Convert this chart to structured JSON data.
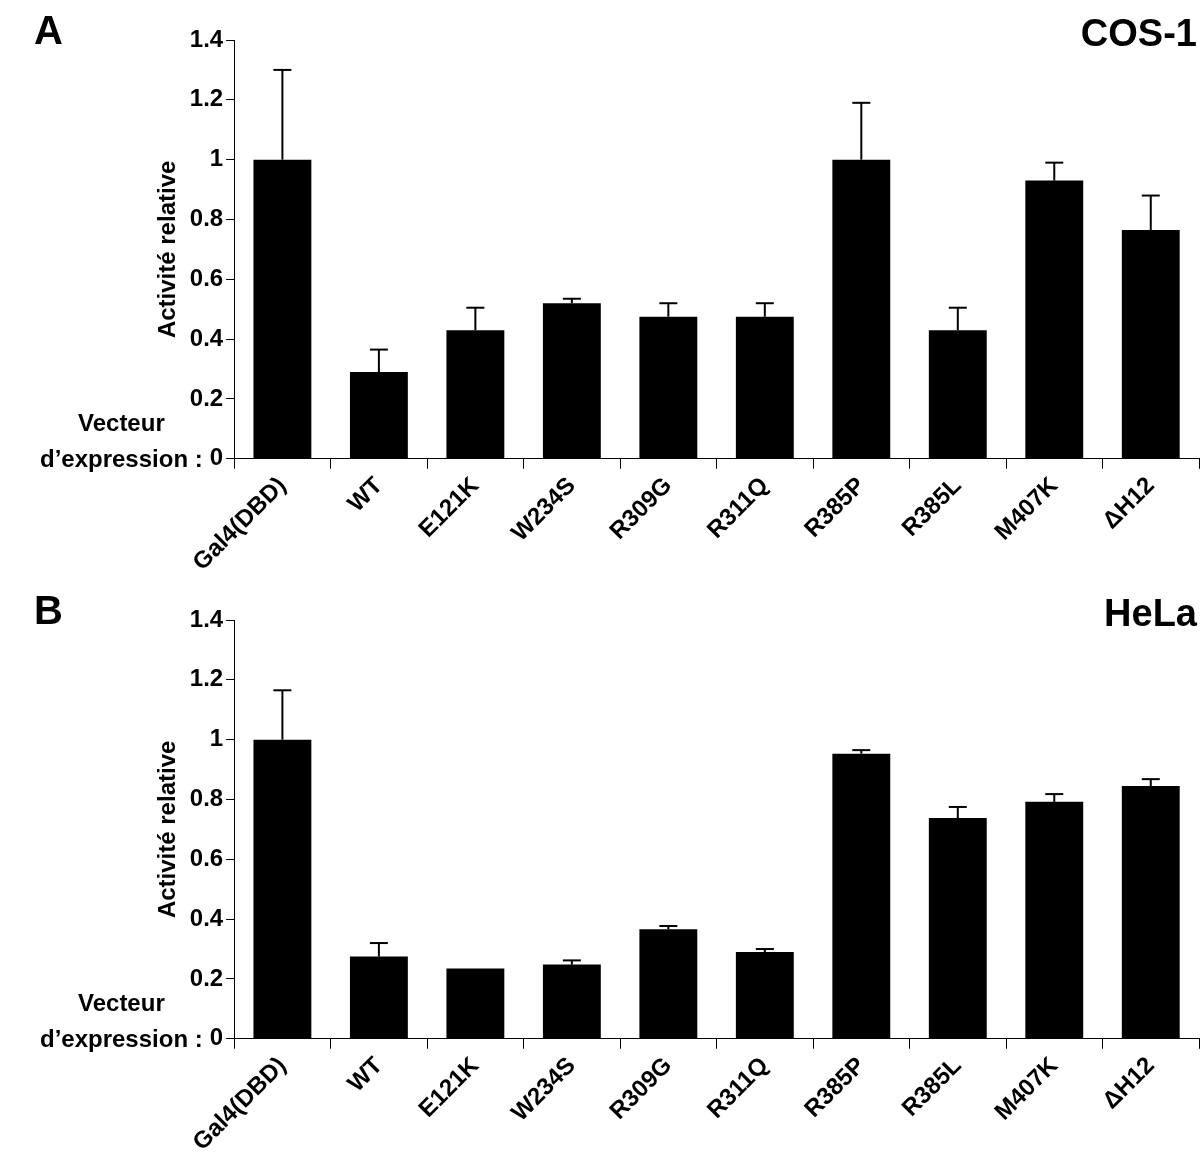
{
  "chart_data": [
    {
      "type": "bar",
      "title": "COS-1",
      "ylabel": "Activité relative",
      "annotations": [
        "A",
        "Vecteur\nd’expression :"
      ],
      "categories": [
        "Gal4(DBD)",
        "WT",
        "E121K",
        "W234S",
        "R309G",
        "R311Q",
        "R385P",
        "R385L",
        "M407K",
        "ΔH12"
      ],
      "values": [
        1.0,
        0.29,
        0.43,
        0.52,
        0.475,
        0.475,
        1.0,
        0.43,
        0.93,
        0.765
      ],
      "errors": [
        [
          1.0,
          1.3
        ],
        [
          0.29,
          0.365
        ],
        [
          0.43,
          0.505
        ],
        [
          0.52,
          0.535
        ],
        [
          0.475,
          0.52
        ],
        [
          0.475,
          0.52
        ],
        [
          1.0,
          1.19
        ],
        [
          0.43,
          0.505
        ],
        [
          0.93,
          0.99
        ],
        [
          0.765,
          0.88
        ]
      ],
      "color": "#000000",
      "ylim": [
        0,
        1.4
      ],
      "yticks": [
        0,
        0.2,
        0.4,
        0.6,
        0.8,
        1,
        1.2,
        1.4
      ],
      "grid": false,
      "legend": false
    },
    {
      "type": "bar",
      "title": "HeLa",
      "ylabel": "Activité relative",
      "annotations": [
        "B",
        "Vecteur\nd’expression :"
      ],
      "categories": [
        "Gal4(DBD)",
        "WT",
        "E121K",
        "W234S",
        "R309G",
        "R311Q",
        "R385P",
        "R385L",
        "M407K",
        "ΔH12"
      ],
      "values": [
        1.0,
        0.275,
        0.235,
        0.248,
        0.366,
        0.29,
        0.953,
        0.738,
        0.792,
        0.845
      ],
      "errors": [
        [
          1.0,
          1.165
        ],
        [
          0.275,
          0.32
        ],
        null,
        [
          0.248,
          0.262
        ],
        [
          0.366,
          0.377
        ],
        [
          0.29,
          0.3
        ],
        [
          0.953,
          0.965
        ],
        [
          0.738,
          0.775
        ],
        [
          0.792,
          0.818
        ],
        [
          0.845,
          0.868
        ]
      ],
      "color": "#000000",
      "ylim": [
        0,
        1.4
      ],
      "yticks": [
        0,
        0.2,
        0.4,
        0.6,
        0.8,
        1,
        1.2,
        1.4
      ],
      "grid": false,
      "legend": false
    }
  ]
}
